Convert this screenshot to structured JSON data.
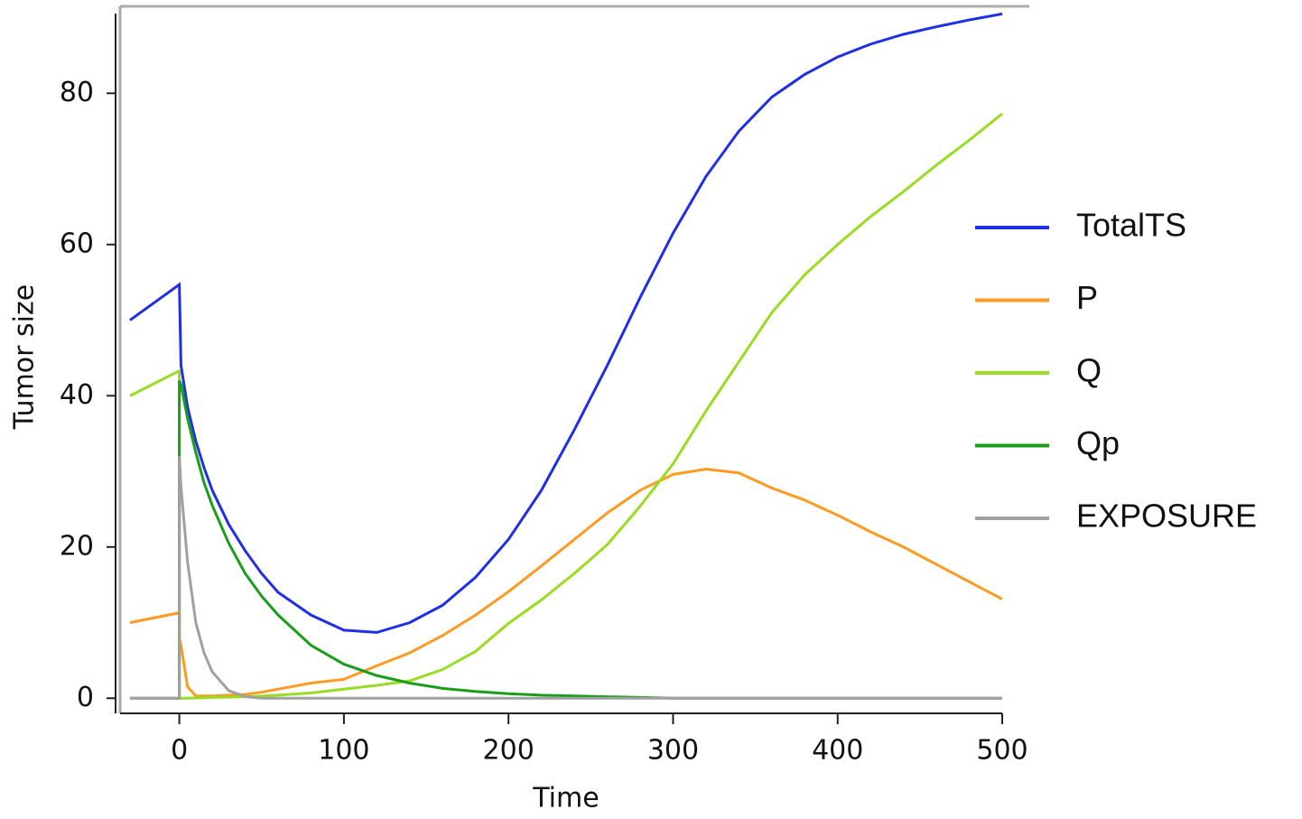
{
  "chart_data": {
    "type": "line",
    "x_label": "Time",
    "y_label": "Tumor size",
    "x": [
      -30,
      0,
      0,
      1,
      5,
      10,
      15,
      20,
      30,
      40,
      50,
      60,
      80,
      100,
      120,
      140,
      160,
      180,
      200,
      220,
      240,
      260,
      280,
      300,
      320,
      340,
      360,
      380,
      400,
      420,
      440,
      460,
      480,
      500
    ],
    "series": [
      {
        "name": "TotalTS",
        "color": "#1f2fe8",
        "values": [
          50,
          54.7,
          54.7,
          44,
          38.5,
          34,
          30.5,
          27.5,
          23,
          19.5,
          16.5,
          14,
          11,
          9,
          8.7,
          10,
          12.3,
          16,
          21,
          27.5,
          35.5,
          44,
          53,
          61.5,
          69,
          75,
          79.5,
          82.5,
          84.8,
          86.5,
          87.8,
          88.8,
          89.7,
          90.5
        ]
      },
      {
        "name": "P",
        "color": "#ff9a22",
        "values": [
          10,
          11.3,
          8,
          7,
          1.5,
          0.3,
          0.3,
          0.3,
          0.4,
          0.5,
          0.8,
          1.2,
          2,
          2.5,
          4.3,
          6,
          8.3,
          11,
          14.1,
          17.5,
          21,
          24.5,
          27.5,
          29.6,
          30.3,
          29.8,
          27.8,
          26.2,
          24.2,
          22,
          20,
          17.7,
          15.4,
          13.1
        ]
      },
      {
        "name": "Q",
        "color": "#99dd22",
        "values": [
          40,
          43.3,
          0,
          0,
          0,
          0.05,
          0.05,
          0.1,
          0.15,
          0.2,
          0.3,
          0.4,
          0.7,
          1.2,
          1.7,
          2.3,
          3.8,
          6.2,
          9.9,
          13,
          16.5,
          20.3,
          25.4,
          31,
          38,
          44.5,
          51,
          56,
          60,
          63.7,
          67,
          70.5,
          73.8,
          77.3
        ]
      },
      {
        "name": "Qp",
        "color": "#1a9e1a",
        "values": [
          0,
          0,
          42,
          41.5,
          37,
          32.5,
          28.5,
          25.5,
          20.5,
          16.5,
          13.5,
          11,
          7,
          4.5,
          3,
          2,
          1.3,
          0.9,
          0.6,
          0.4,
          0.3,
          0.2,
          0.1,
          0,
          0,
          0,
          0,
          0,
          0,
          0,
          0,
          0,
          0,
          0
        ]
      },
      {
        "name": "EXPOSURE",
        "color": "#a0a0a0",
        "values": [
          0,
          0,
          32,
          28,
          18,
          10,
          6,
          3.5,
          1,
          0.2,
          0,
          0,
          0,
          0,
          0,
          0,
          0,
          0,
          0,
          0,
          0,
          0,
          0,
          0,
          0,
          0,
          0,
          0,
          0,
          0,
          0,
          0,
          0,
          0
        ]
      }
    ],
    "xlim": [
      -36,
      500
    ],
    "ylim": [
      -2,
      91.5
    ],
    "xticks": [
      0,
      100,
      200,
      300,
      400,
      500
    ],
    "yticks": [
      0,
      20,
      40,
      60,
      80
    ],
    "legend": "right"
  }
}
